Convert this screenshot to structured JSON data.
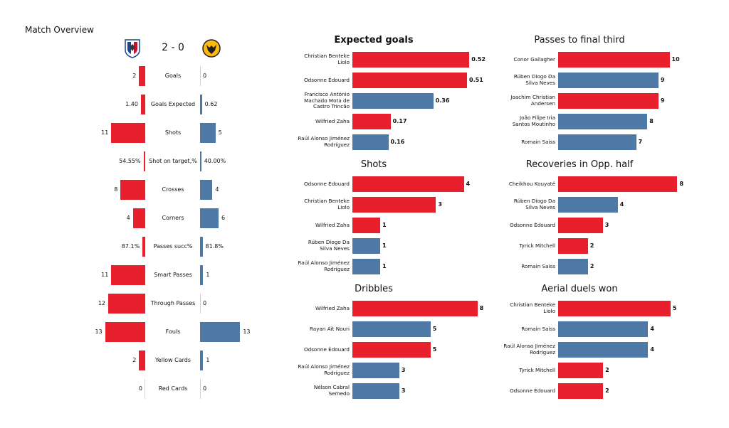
{
  "chart_data": [
    {
      "type": "butterfly",
      "title": "Match Overview",
      "score": "2 - 0",
      "categories": [
        "Goals",
        "Goals Expected",
        "Shots",
        "Shot on target,%",
        "Crosses",
        "Corners",
        "Passes succ%",
        "Smart Passes",
        "Through Passes",
        "Fouls",
        "Yellow Cards",
        "Red Cards"
      ],
      "xlim": [
        0,
        15
      ],
      "series": [
        {
          "color": "#e8202e",
          "values": [
            2,
            1.4,
            11,
            0.5455,
            8,
            4,
            0.871,
            11,
            12,
            13,
            2,
            0
          ],
          "value_labels": [
            "2",
            "1.40",
            "11",
            "54.55%",
            "8",
            "4",
            "87.1%",
            "11",
            "12",
            "13",
            "2",
            "0"
          ]
        },
        {
          "color": "#4e79a7",
          "values": [
            0,
            0.62,
            5,
            0.4,
            4,
            6,
            0.818,
            1,
            0,
            13,
            1,
            0
          ],
          "value_labels": [
            "0",
            "0.62",
            "5",
            "40.00%",
            "4",
            "6",
            "81.8%",
            "1",
            "0",
            "13",
            "1",
            "0"
          ]
        }
      ]
    },
    {
      "type": "barh",
      "title": "Expected goals",
      "categories": [
        "Christian Benteke Liolo",
        "Odsonne Édouard",
        "Francisco António Machado Mota de Castro Trincão",
        "Wilfried Zaha",
        "Raúl Alonso Jiménez Rodríguez"
      ],
      "values": [
        0.52,
        0.51,
        0.36,
        0.17,
        0.16
      ],
      "colors": [
        "#e8202e",
        "#e8202e",
        "#4e79a7",
        "#e8202e",
        "#4e79a7"
      ],
      "xlim": [
        0,
        0.57
      ]
    },
    {
      "type": "barh",
      "title": "Passes to final third",
      "categories": [
        "Conor Gallagher",
        "Rúben Diogo Da Silva Neves",
        "Joachim Christian Andersen",
        "João Filipe Iria Santos Moutinho",
        "Romain Saiss"
      ],
      "values": [
        10,
        9,
        9,
        8,
        7
      ],
      "colors": [
        "#e8202e",
        "#4e79a7",
        "#e8202e",
        "#4e79a7",
        "#4e79a7"
      ],
      "xlim": [
        0,
        11.5
      ]
    },
    {
      "type": "barh",
      "title": "Shots",
      "categories": [
        "Odsonne Édouard",
        "Christian Benteke Liolo",
        "Wilfried Zaha",
        "Rúben Diogo Da Silva Neves",
        "Raúl Alonso Jiménez Rodríguez"
      ],
      "values": [
        4,
        3,
        1,
        1,
        1
      ],
      "colors": [
        "#e8202e",
        "#e8202e",
        "#e8202e",
        "#4e79a7",
        "#4e79a7"
      ],
      "xlim": [
        0,
        4.6
      ]
    },
    {
      "type": "barh",
      "title": "Recoveries in Opp. half",
      "categories": [
        "Cheikhou Kouyaté",
        "Rúben Diogo Da Silva Neves",
        "Odsonne Édouard",
        "Tyrick Mitchell",
        "Romain Saiss"
      ],
      "values": [
        8,
        4,
        3,
        2,
        2
      ],
      "colors": [
        "#e8202e",
        "#4e79a7",
        "#e8202e",
        "#e8202e",
        "#4e79a7"
      ],
      "xlim": [
        0,
        8.6
      ]
    },
    {
      "type": "barh",
      "title": "Dribbles",
      "categories": [
        "Wilfried Zaha",
        "Rayan Aït Nouri",
        "Odsonne Édouard",
        "Raúl Alonso Jiménez Rodríguez",
        "Nélson Cabral Semedo"
      ],
      "values": [
        8,
        5,
        5,
        3,
        3
      ],
      "colors": [
        "#e8202e",
        "#4e79a7",
        "#e8202e",
        "#4e79a7",
        "#4e79a7"
      ],
      "xlim": [
        0,
        8.2
      ]
    },
    {
      "type": "barh",
      "title": "Aerial duels won",
      "categories": [
        "Christian Benteke Liolo",
        "Romain Saiss",
        "Raúl Alonso Jiménez Rodríguez",
        "Tyrick Mitchell",
        "Odsonne Édouard"
      ],
      "values": [
        5,
        4,
        4,
        2,
        2
      ],
      "colors": [
        "#e8202e",
        "#4e79a7",
        "#4e79a7",
        "#e8202e",
        "#e8202e"
      ],
      "xlim": [
        0,
        5.7
      ]
    }
  ]
}
